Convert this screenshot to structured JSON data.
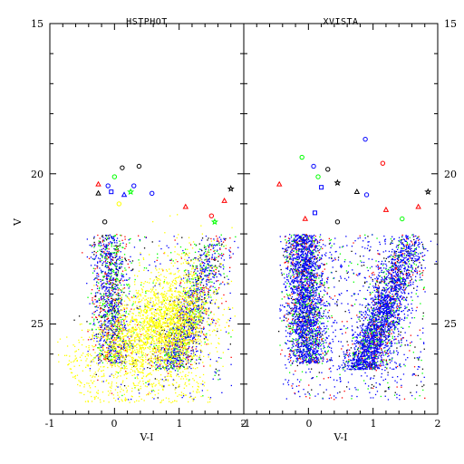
{
  "chart_data": {
    "type": "scatter",
    "panels": [
      {
        "title": "HSTPHOT",
        "xlabel": "V-I",
        "ylabel": "V",
        "xlim": [
          -1,
          2
        ],
        "ylim": [
          28,
          15
        ],
        "x_ticks": [
          "-1",
          "0",
          "1",
          "2"
        ],
        "y_ticks": [
          "15",
          "20",
          "25"
        ],
        "series": [
          {
            "color": "#ffff00",
            "marker": "dot",
            "approx_count": 2600,
            "description_points": [
              [
                0.8,
                25.0
              ],
              [
                0.3,
                25.5
              ],
              [
                1.0,
                24.0
              ],
              [
                -0.5,
                26.8
              ],
              [
                0.0,
                27.0
              ],
              [
                1.2,
                23.3
              ]
            ]
          },
          {
            "color": "#0000ff",
            "marker": "dot",
            "approx_count": 1200,
            "description_points": [
              [
                -0.2,
                24.6
              ],
              [
                1.0,
                24.5
              ],
              [
                1.3,
                23.0
              ],
              [
                0.5,
                22.6
              ]
            ]
          },
          {
            "color": "#00ff00",
            "marker": "dot",
            "approx_count": 700,
            "description_points": [
              [
                0.6,
                23.5
              ],
              [
                1.1,
                24.8
              ]
            ]
          },
          {
            "color": "#ff0000",
            "marker": "dot",
            "approx_count": 500,
            "description_points": [
              [
                1.2,
                25.9
              ],
              [
                0.7,
                26.5
              ]
            ]
          },
          {
            "color": "#000000",
            "marker": "dot",
            "approx_count": 400,
            "description_points": [
              [
                0.9,
                26.3
              ]
            ]
          }
        ],
        "bright_markers": [
          {
            "x": 0.12,
            "y": 19.8,
            "shape": "circle",
            "color": "#000000"
          },
          {
            "x": 0.38,
            "y": 19.75,
            "shape": "circle",
            "color": "#000000"
          },
          {
            "x": 0.0,
            "y": 20.1,
            "shape": "circle",
            "color": "#00ff00"
          },
          {
            "x": -0.1,
            "y": 20.4,
            "shape": "circle",
            "color": "#0000ff"
          },
          {
            "x": -0.05,
            "y": 20.6,
            "shape": "square",
            "color": "#0000ff"
          },
          {
            "x": 0.3,
            "y": 20.4,
            "shape": "circle",
            "color": "#0000ff"
          },
          {
            "x": 0.58,
            "y": 20.65,
            "shape": "circle",
            "color": "#0000ff"
          },
          {
            "x": -0.25,
            "y": 20.35,
            "shape": "triangle",
            "color": "#ff0000"
          },
          {
            "x": -0.25,
            "y": 20.65,
            "shape": "triangle",
            "color": "#000000"
          },
          {
            "x": 0.15,
            "y": 20.7,
            "shape": "triangle",
            "color": "#0000ff"
          },
          {
            "x": 0.25,
            "y": 20.6,
            "shape": "star",
            "color": "#00ff00"
          },
          {
            "x": 0.07,
            "y": 21.0,
            "shape": "circle",
            "color": "#ffff00"
          },
          {
            "x": 1.1,
            "y": 21.1,
            "shape": "triangle",
            "color": "#ff0000"
          },
          {
            "x": 1.5,
            "y": 21.4,
            "shape": "circle",
            "color": "#ff0000"
          },
          {
            "x": 1.7,
            "y": 20.9,
            "shape": "triangle",
            "color": "#ff0000"
          },
          {
            "x": 1.8,
            "y": 20.5,
            "shape": "star",
            "color": "#000000"
          },
          {
            "x": 1.55,
            "y": 21.6,
            "shape": "star",
            "color": "#00ff00"
          },
          {
            "x": -0.15,
            "y": 21.6,
            "shape": "circle",
            "color": "#000000"
          }
        ]
      },
      {
        "title": "XVISTA",
        "xlabel": "V-I",
        "xlim": [
          -1,
          2
        ],
        "ylim": [
          28,
          15
        ],
        "x_ticks": [
          "-1",
          "0",
          "1",
          "2"
        ],
        "y_ticks": [
          "15",
          "20",
          "25"
        ],
        "series": [
          {
            "color": "#0000ff",
            "marker": "dot",
            "approx_count": 3600,
            "description_points": [
              [
                0.0,
                25.5
              ],
              [
                0.9,
                25.2
              ],
              [
                1.1,
                23.6
              ],
              [
                1.4,
                22.9
              ],
              [
                -0.3,
                26.0
              ]
            ]
          },
          {
            "color": "#00ff00",
            "marker": "dot",
            "approx_count": 900,
            "description_points": [
              [
                0.5,
                24.5
              ],
              [
                1.2,
                23.5
              ]
            ]
          },
          {
            "color": "#ff0000",
            "marker": "dot",
            "approx_count": 700,
            "description_points": [
              [
                1.0,
                27.0
              ],
              [
                0.4,
                26.8
              ]
            ]
          },
          {
            "color": "#000000",
            "marker": "dot",
            "approx_count": 500,
            "description_points": [
              [
                0.6,
                26.7
              ]
            ]
          }
        ],
        "bright_markers": [
          {
            "x": 0.88,
            "y": 18.85,
            "shape": "circle",
            "color": "#0000ff"
          },
          {
            "x": -0.1,
            "y": 19.45,
            "shape": "circle",
            "color": "#00ff00"
          },
          {
            "x": 0.08,
            "y": 19.75,
            "shape": "circle",
            "color": "#0000ff"
          },
          {
            "x": 0.3,
            "y": 19.85,
            "shape": "circle",
            "color": "#000000"
          },
          {
            "x": 1.15,
            "y": 19.65,
            "shape": "circle",
            "color": "#ff0000"
          },
          {
            "x": -0.45,
            "y": 20.35,
            "shape": "triangle",
            "color": "#ff0000"
          },
          {
            "x": 0.15,
            "y": 20.1,
            "shape": "circle",
            "color": "#00ff00"
          },
          {
            "x": 0.45,
            "y": 20.3,
            "shape": "star",
            "color": "#000000"
          },
          {
            "x": 0.2,
            "y": 20.45,
            "shape": "square",
            "color": "#0000ff"
          },
          {
            "x": 0.75,
            "y": 20.6,
            "shape": "triangle",
            "color": "#000000"
          },
          {
            "x": 0.9,
            "y": 20.7,
            "shape": "circle",
            "color": "#0000ff"
          },
          {
            "x": 1.85,
            "y": 20.6,
            "shape": "star",
            "color": "#000000"
          },
          {
            "x": 1.2,
            "y": 21.2,
            "shape": "triangle",
            "color": "#ff0000"
          },
          {
            "x": 1.45,
            "y": 21.5,
            "shape": "circle",
            "color": "#00ff00"
          },
          {
            "x": 1.7,
            "y": 21.1,
            "shape": "triangle",
            "color": "#ff0000"
          },
          {
            "x": -0.05,
            "y": 21.5,
            "shape": "triangle",
            "color": "#ff0000"
          },
          {
            "x": 0.1,
            "y": 21.3,
            "shape": "square",
            "color": "#0000ff"
          },
          {
            "x": 0.45,
            "y": 21.6,
            "shape": "circle",
            "color": "#000000"
          }
        ]
      }
    ],
    "right_y_ticks": [
      "15",
      "20",
      "25"
    ],
    "grid": false,
    "legend": "none"
  }
}
